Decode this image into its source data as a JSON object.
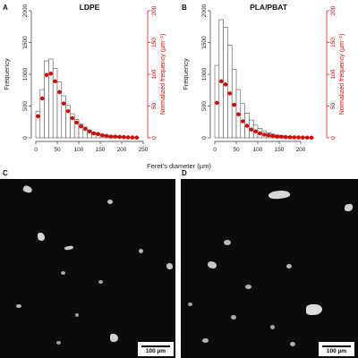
{
  "panel_letters": {
    "a": "A",
    "b": "B",
    "c": "C",
    "d": "D"
  },
  "shared_xlabel": "Feret’s diameter (µm)",
  "colors": {
    "bar_fill": "#ffffff",
    "bar_edge": "#555555",
    "points": "#dd0000",
    "axis": "#333333"
  },
  "chart_data": [
    {
      "type": "bar",
      "title": "LDPE",
      "ylabel": "Frequency",
      "y2label": "Normalized frequency (µm⁻¹)",
      "bin_centers": [
        5,
        15,
        25,
        35,
        45,
        55,
        65,
        75,
        85,
        95,
        105,
        115,
        125,
        135,
        145,
        155,
        165,
        175,
        185,
        195,
        205,
        215,
        225,
        235
      ],
      "values": [
        420,
        760,
        1210,
        1240,
        1090,
        880,
        660,
        510,
        380,
        290,
        220,
        170,
        120,
        90,
        70,
        50,
        40,
        30,
        25,
        18,
        15,
        10,
        8,
        5
      ],
      "normalized_values": [
        34,
        62,
        99,
        101,
        89,
        72,
        54,
        42,
        31,
        24,
        18,
        14,
        10,
        7,
        6,
        4,
        3,
        2,
        2,
        1.5,
        1.2,
        0.8,
        0.6,
        0.4
      ],
      "xlim": [
        0,
        250
      ],
      "ylim": [
        0,
        2000
      ],
      "y2lim": [
        0,
        200
      ],
      "xticks": [
        0,
        50,
        100,
        150,
        200,
        250
      ],
      "yticks": [
        0,
        500,
        1000,
        1500,
        2000
      ],
      "y2ticks": [
        0,
        50,
        100,
        150,
        200
      ]
    },
    {
      "type": "bar",
      "title": "PLA/PBAT",
      "ylabel": "Frequency",
      "y2label": "Normalized frequency (µm⁻¹)",
      "bin_centers": [
        5,
        15,
        25,
        35,
        45,
        55,
        65,
        75,
        85,
        95,
        105,
        115,
        125,
        135,
        145,
        155,
        165,
        175,
        185,
        195,
        205,
        215,
        225
      ],
      "values": [
        1140,
        1860,
        1740,
        1460,
        1080,
        760,
        540,
        390,
        280,
        200,
        150,
        110,
        80,
        60,
        45,
        35,
        25,
        20,
        15,
        12,
        10,
        8,
        5
      ],
      "normalized_values": [
        55,
        89,
        84,
        70,
        52,
        37,
        26,
        19,
        13,
        10,
        7,
        5,
        4,
        3,
        2,
        1.7,
        1.2,
        1,
        0.7,
        0.6,
        0.5,
        0.4,
        0.2
      ],
      "xlim": [
        0,
        250
      ],
      "ylim": [
        0,
        2000
      ],
      "y2lim": [
        0,
        200
      ],
      "xticks": [
        0,
        50,
        100,
        150,
        200
      ],
      "yticks": [
        0,
        500,
        1000,
        1500,
        2000
      ],
      "y2ticks": [
        0,
        50,
        100,
        150,
        200
      ]
    }
  ],
  "micrographs": {
    "c": {
      "scale_label": "100 µm"
    },
    "d": {
      "scale_label": "100 µm"
    }
  }
}
